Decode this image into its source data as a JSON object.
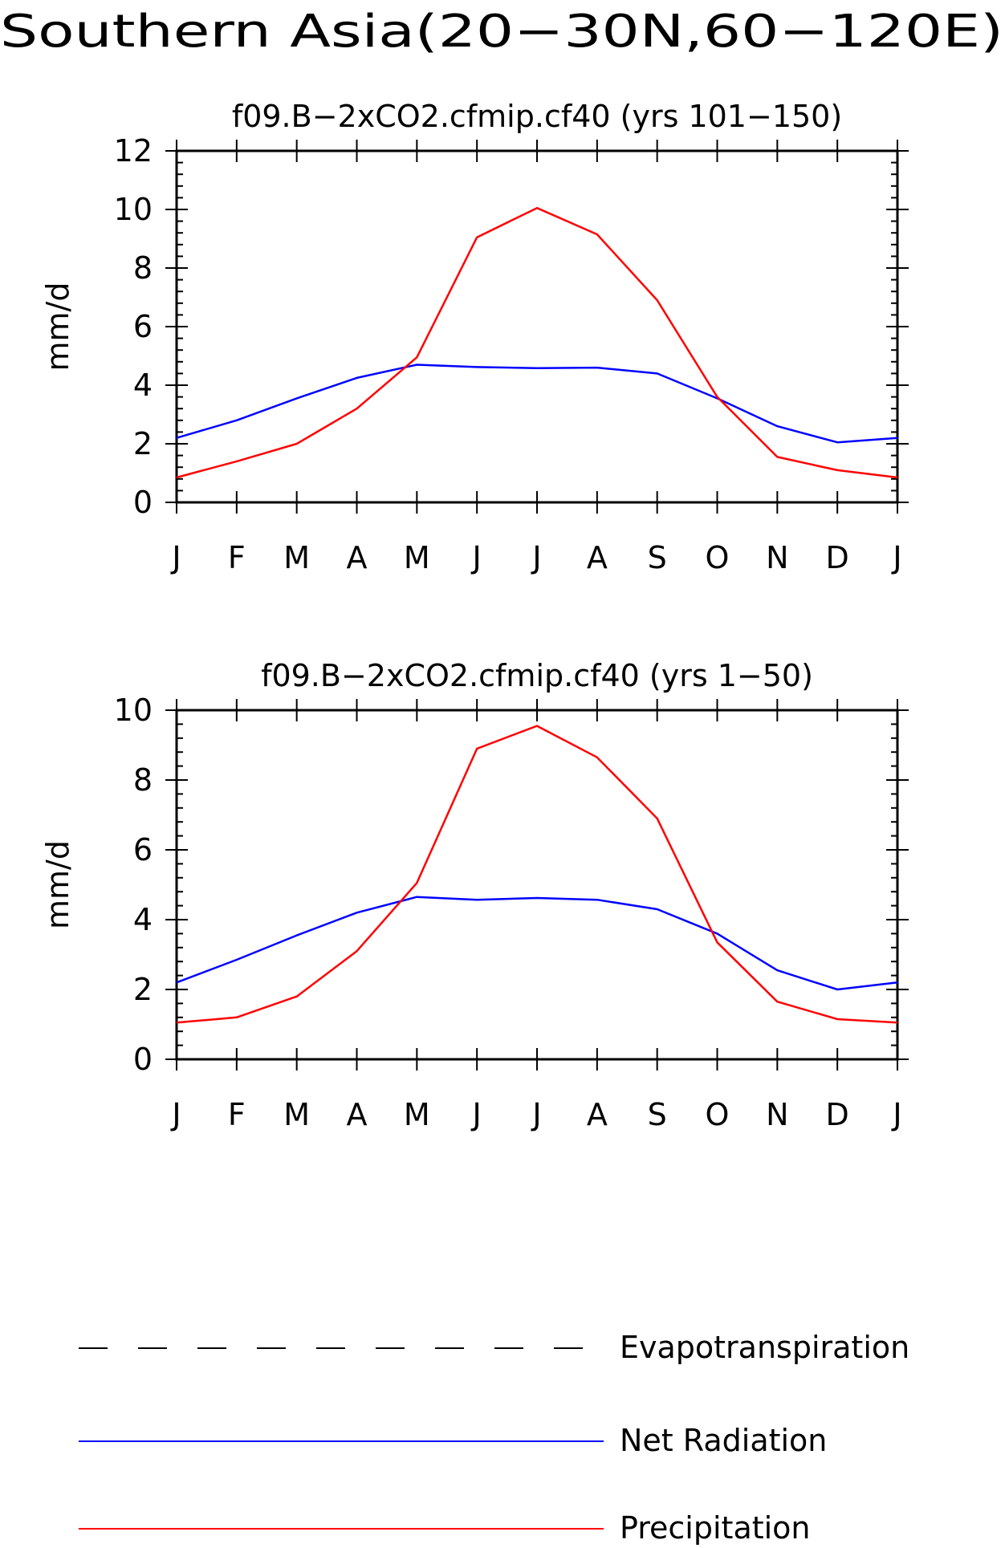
{
  "page_title": "Southern Asia(20−30N,60−120E)",
  "colors": {
    "axis": "#000000",
    "net_radiation": "#0000ff",
    "precipitation": "#ff0000",
    "evapotranspiration": "#000000"
  },
  "legend": [
    {
      "label": "Evapotranspiration",
      "color": "#000000",
      "style": "dashed"
    },
    {
      "label": "Net Radiation",
      "color": "#0000ff",
      "style": "solid"
    },
    {
      "label": "Precipitation",
      "color": "#ff0000",
      "style": "solid"
    }
  ],
  "chart_data": [
    {
      "type": "line",
      "title": "f09.B−2xCO2.cfmip.cf40 (yrs 101−150)",
      "xlabel": "",
      "ylabel": "mm/d",
      "categories": [
        "J",
        "F",
        "M",
        "A",
        "M",
        "J",
        "J",
        "A",
        "S",
        "O",
        "N",
        "D",
        "J"
      ],
      "ylim": [
        0,
        12
      ],
      "yticks": [
        0,
        2,
        4,
        6,
        8,
        10,
        12
      ],
      "ytick_labels": [
        "0",
        "2",
        "4",
        "6",
        "8",
        "10",
        "12"
      ],
      "grid": false,
      "series": [
        {
          "name": "Net Radiation",
          "color": "#0000ff",
          "values": [
            2.2,
            2.8,
            3.55,
            4.25,
            4.7,
            4.62,
            4.58,
            4.6,
            4.4,
            3.55,
            2.6,
            2.05,
            2.2
          ]
        },
        {
          "name": "Precipitation",
          "color": "#ff0000",
          "values": [
            0.85,
            1.4,
            2.0,
            3.2,
            4.95,
            9.05,
            10.05,
            9.15,
            6.9,
            3.6,
            1.55,
            1.1,
            0.85
          ]
        }
      ]
    },
    {
      "type": "line",
      "title": "f09.B−2xCO2.cfmip.cf40 (yrs 1−50)",
      "xlabel": "",
      "ylabel": "mm/d",
      "categories": [
        "J",
        "F",
        "M",
        "A",
        "M",
        "J",
        "J",
        "A",
        "S",
        "O",
        "N",
        "D",
        "J"
      ],
      "ylim": [
        0,
        10
      ],
      "yticks": [
        0,
        2,
        4,
        6,
        8,
        10
      ],
      "ytick_labels": [
        "0",
        "2",
        "4",
        "6",
        "8",
        "10"
      ],
      "grid": false,
      "series": [
        {
          "name": "Net Radiation",
          "color": "#0000ff",
          "values": [
            2.2,
            2.85,
            3.55,
            4.2,
            4.65,
            4.57,
            4.62,
            4.57,
            4.3,
            3.6,
            2.55,
            2.0,
            2.2
          ]
        },
        {
          "name": "Precipitation",
          "color": "#ff0000",
          "values": [
            1.05,
            1.2,
            1.8,
            3.1,
            5.05,
            8.9,
            9.55,
            8.65,
            6.9,
            3.35,
            1.65,
            1.15,
            1.05
          ]
        }
      ]
    }
  ]
}
